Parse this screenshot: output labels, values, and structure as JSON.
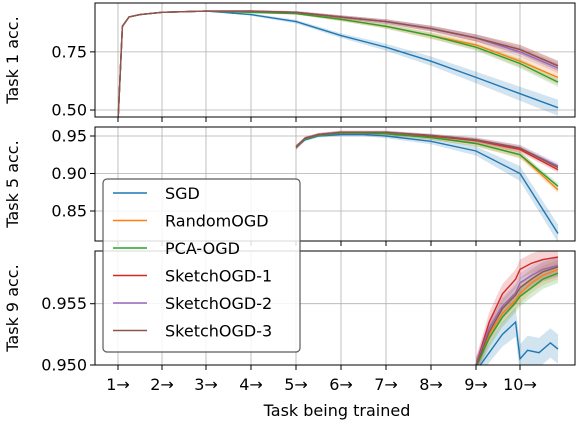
{
  "chart_data": {
    "type": "line",
    "xlabel": "Task being trained",
    "x_ticks": [
      "1→",
      "2→",
      "3→",
      "4→",
      "5→",
      "6→",
      "7→",
      "8→",
      "9→",
      "10→"
    ],
    "grid": true,
    "legend": {
      "placement": "lower-left (overlapping panels 2-3)",
      "entries": [
        "SGD",
        "RandomOGD",
        "PCA-OGD",
        "SketchOGD-1",
        "SketchOGD-2",
        "SketchOGD-3"
      ]
    },
    "series_colors": {
      "SGD": "#1f77b4",
      "RandomOGD": "#ff7f0e",
      "PCA-OGD": "#2ca02c",
      "SketchOGD-1": "#d62728",
      "SketchOGD-2": "#9467bd",
      "SketchOGD-3": "#8c564b"
    },
    "panels": [
      {
        "ylabel": "Task 1 acc.",
        "y_ticks": [
          "0.50",
          "0.75"
        ],
        "ylim": [
          0.47,
          0.96
        ],
        "x_start": 1,
        "series": [
          {
            "name": "SGD",
            "x": [
              1,
              1.1,
              1.25,
              1.5,
              2,
              3,
              4,
              5,
              6,
              7,
              8,
              9,
              10,
              11
            ],
            "y": [
              0.45,
              0.86,
              0.9,
              0.91,
              0.92,
              0.925,
              0.91,
              0.88,
              0.82,
              0.77,
              0.71,
              0.64,
              0.57,
              0.51
            ],
            "band": [
              0,
              0,
              0,
              0,
              0,
              0,
              0.005,
              0.008,
              0.01,
              0.015,
              0.02,
              0.025,
              0.03,
              0.035
            ]
          },
          {
            "name": "RandomOGD",
            "x": [
              1,
              1.1,
              1.25,
              1.5,
              2,
              3,
              4,
              5,
              6,
              7,
              8,
              9,
              10,
              11
            ],
            "y": [
              0.45,
              0.86,
              0.9,
              0.91,
              0.92,
              0.925,
              0.92,
              0.915,
              0.89,
              0.86,
              0.82,
              0.78,
              0.71,
              0.64
            ],
            "band": [
              0,
              0,
              0,
              0,
              0,
              0,
              0.004,
              0.005,
              0.008,
              0.01,
              0.015,
              0.02,
              0.025,
              0.03
            ]
          },
          {
            "name": "PCA-OGD",
            "x": [
              1,
              1.1,
              1.25,
              1.5,
              2,
              3,
              4,
              5,
              6,
              7,
              8,
              9,
              10,
              11
            ],
            "y": [
              0.45,
              0.86,
              0.9,
              0.91,
              0.92,
              0.925,
              0.92,
              0.915,
              0.89,
              0.86,
              0.82,
              0.77,
              0.7,
              0.62
            ],
            "band": [
              0,
              0,
              0,
              0,
              0,
              0,
              0.004,
              0.005,
              0.008,
              0.01,
              0.012,
              0.015,
              0.02,
              0.02
            ]
          },
          {
            "name": "SketchOGD-1",
            "x": [
              1,
              1.1,
              1.25,
              1.5,
              2,
              3,
              4,
              5,
              6,
              7,
              8,
              9,
              10,
              11
            ],
            "y": [
              0.45,
              0.86,
              0.9,
              0.91,
              0.92,
              0.925,
              0.925,
              0.92,
              0.9,
              0.88,
              0.85,
              0.81,
              0.76,
              0.69
            ],
            "band": [
              0,
              0,
              0,
              0,
              0,
              0,
              0.004,
              0.005,
              0.007,
              0.01,
              0.012,
              0.015,
              0.02,
              0.022
            ]
          },
          {
            "name": "SketchOGD-2",
            "x": [
              1,
              1.1,
              1.25,
              1.5,
              2,
              3,
              4,
              5,
              6,
              7,
              8,
              9,
              10,
              11
            ],
            "y": [
              0.45,
              0.86,
              0.9,
              0.91,
              0.92,
              0.925,
              0.925,
              0.92,
              0.9,
              0.88,
              0.85,
              0.81,
              0.75,
              0.68
            ],
            "band": [
              0,
              0,
              0,
              0,
              0,
              0,
              0.004,
              0.005,
              0.007,
              0.01,
              0.012,
              0.015,
              0.02,
              0.022
            ]
          },
          {
            "name": "SketchOGD-3",
            "x": [
              1,
              1.1,
              1.25,
              1.5,
              2,
              3,
              4,
              5,
              6,
              7,
              8,
              9,
              10,
              11
            ],
            "y": [
              0.45,
              0.86,
              0.9,
              0.91,
              0.92,
              0.925,
              0.925,
              0.92,
              0.9,
              0.88,
              0.85,
              0.81,
              0.76,
              0.69
            ],
            "band": [
              0,
              0,
              0,
              0,
              0,
              0,
              0.004,
              0.005,
              0.007,
              0.01,
              0.012,
              0.015,
              0.02,
              0.022
            ]
          }
        ]
      },
      {
        "ylabel": "Task 5 acc.",
        "y_ticks": [
          "0.85",
          "0.90",
          "0.95"
        ],
        "ylim": [
          0.81,
          0.962
        ],
        "x_start": 5,
        "series": [
          {
            "name": "SGD",
            "x": [
              5,
              5.2,
              5.5,
              6,
              6.5,
              7,
              8,
              9,
              10,
              11
            ],
            "y": [
              0.935,
              0.945,
              0.95,
              0.952,
              0.952,
              0.95,
              0.943,
              0.93,
              0.9,
              0.82
            ],
            "band": [
              0.003,
              0.002,
              0.002,
              0.002,
              0.002,
              0.003,
              0.004,
              0.006,
              0.01,
              0.012
            ]
          },
          {
            "name": "RandomOGD",
            "x": [
              5,
              5.2,
              5.5,
              6,
              6.5,
              7,
              8,
              9,
              10,
              11
            ],
            "y": [
              0.935,
              0.946,
              0.951,
              0.954,
              0.954,
              0.953,
              0.948,
              0.94,
              0.925,
              0.878
            ],
            "band": [
              0.003,
              0.002,
              0.002,
              0.002,
              0.002,
              0.002,
              0.003,
              0.004,
              0.005,
              0.004
            ]
          },
          {
            "name": "PCA-OGD",
            "x": [
              5,
              5.2,
              5.5,
              6,
              6.5,
              7,
              8,
              9,
              10,
              11
            ],
            "y": [
              0.935,
              0.946,
              0.951,
              0.954,
              0.954,
              0.953,
              0.948,
              0.94,
              0.925,
              0.883
            ],
            "band": [
              0.003,
              0.002,
              0.002,
              0.002,
              0.002,
              0.002,
              0.003,
              0.004,
              0.004,
              0.004
            ]
          },
          {
            "name": "SketchOGD-1",
            "x": [
              5,
              5.2,
              5.5,
              6,
              6.5,
              7,
              8,
              9,
              10,
              11
            ],
            "y": [
              0.935,
              0.947,
              0.952,
              0.955,
              0.955,
              0.955,
              0.95,
              0.944,
              0.932,
              0.905
            ],
            "band": [
              0.003,
              0.002,
              0.002,
              0.002,
              0.002,
              0.002,
              0.002,
              0.003,
              0.004,
              0.004
            ]
          },
          {
            "name": "SketchOGD-2",
            "x": [
              5,
              5.2,
              5.5,
              6,
              6.5,
              7,
              8,
              9,
              10,
              11
            ],
            "y": [
              0.935,
              0.947,
              0.952,
              0.955,
              0.955,
              0.955,
              0.951,
              0.945,
              0.934,
              0.91
            ],
            "band": [
              0.003,
              0.002,
              0.002,
              0.002,
              0.002,
              0.002,
              0.002,
              0.003,
              0.004,
              0.004
            ]
          },
          {
            "name": "SketchOGD-3",
            "x": [
              5,
              5.2,
              5.5,
              6,
              6.5,
              7,
              8,
              9,
              10,
              11
            ],
            "y": [
              0.935,
              0.947,
              0.952,
              0.955,
              0.955,
              0.955,
              0.951,
              0.945,
              0.934,
              0.908
            ],
            "band": [
              0.003,
              0.002,
              0.002,
              0.002,
              0.002,
              0.002,
              0.002,
              0.003,
              0.004,
              0.004
            ]
          }
        ]
      },
      {
        "ylabel": "Task 9 acc.",
        "y_ticks": [
          "0.950",
          "0.955"
        ],
        "ylim": [
          0.95,
          0.9593
        ],
        "x_start": 9,
        "series": [
          {
            "name": "SGD",
            "x": [
              9,
              9.3,
              9.6,
              9.9,
              10,
              10.2,
              10.5,
              10.8,
              11
            ],
            "y": [
              0.9495,
              0.951,
              0.9525,
              0.9535,
              0.9505,
              0.9512,
              0.951,
              0.9518,
              0.9513
            ],
            "band": [
              0.0006,
              0.0008,
              0.001,
              0.0012,
              0.0012,
              0.0012,
              0.0012,
              0.0012,
              0.0012
            ]
          },
          {
            "name": "RandomOGD",
            "x": [
              9,
              9.3,
              9.6,
              9.9,
              10,
              10.3,
              10.6,
              11
            ],
            "y": [
              0.9498,
              0.9525,
              0.9542,
              0.9553,
              0.9558,
              0.9567,
              0.9573,
              0.9578
            ],
            "band": [
              0.0006,
              0.0008,
              0.0008,
              0.0008,
              0.0008,
              0.0008,
              0.0008,
              0.0008
            ]
          },
          {
            "name": "PCA-OGD",
            "x": [
              9,
              9.3,
              9.6,
              9.9,
              10,
              10.3,
              10.6,
              11
            ],
            "y": [
              0.9498,
              0.9522,
              0.9539,
              0.9551,
              0.9556,
              0.9563,
              0.957,
              0.9575
            ],
            "band": [
              0.0006,
              0.0008,
              0.0008,
              0.0008,
              0.0008,
              0.0008,
              0.0008,
              0.0008
            ]
          },
          {
            "name": "SketchOGD-1",
            "x": [
              9,
              9.3,
              9.6,
              9.9,
              10,
              10.3,
              10.6,
              11
            ],
            "y": [
              0.95,
              0.9535,
              0.9558,
              0.957,
              0.9578,
              0.9583,
              0.9586,
              0.9588
            ],
            "band": [
              0.0006,
              0.0008,
              0.0008,
              0.0008,
              0.0008,
              0.0008,
              0.0008,
              0.0008
            ]
          },
          {
            "name": "SketchOGD-2",
            "x": [
              9,
              9.3,
              9.6,
              9.9,
              10,
              10.3,
              10.6,
              11
            ],
            "y": [
              0.95,
              0.953,
              0.9548,
              0.9559,
              0.9567,
              0.9573,
              0.9578,
              0.9581
            ],
            "band": [
              0.0006,
              0.0008,
              0.0008,
              0.0008,
              0.0008,
              0.0008,
              0.0008,
              0.0008
            ]
          },
          {
            "name": "SketchOGD-3",
            "x": [
              9,
              9.3,
              9.6,
              9.9,
              10,
              10.3,
              10.6,
              11
            ],
            "y": [
              0.9499,
              0.9527,
              0.9546,
              0.9557,
              0.9563,
              0.957,
              0.9576,
              0.958
            ],
            "band": [
              0.0006,
              0.0008,
              0.0008,
              0.0008,
              0.0008,
              0.0008,
              0.0008,
              0.0008
            ]
          }
        ]
      }
    ]
  }
}
